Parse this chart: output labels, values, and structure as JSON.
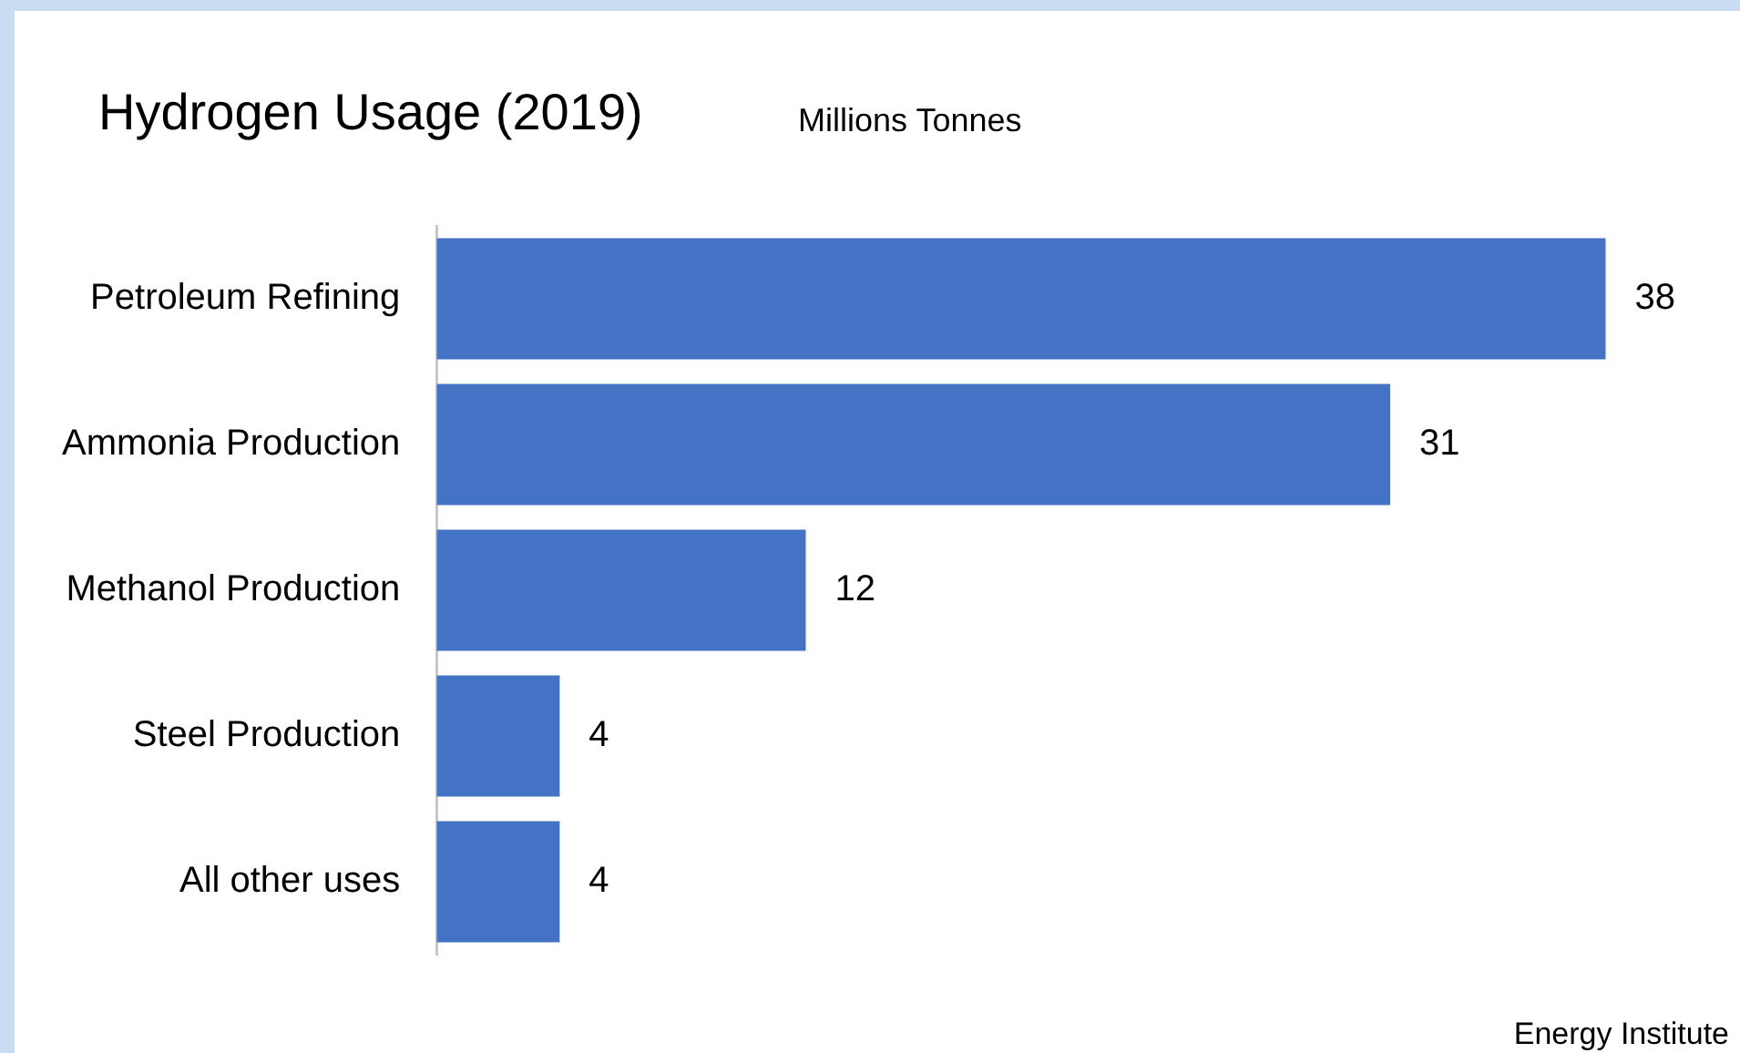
{
  "chart_data": {
    "type": "bar",
    "orientation": "horizontal",
    "title": "Hydrogen Usage (2019)",
    "subtitle": "Millions Tonnes",
    "categories": [
      "Petroleum Refining",
      "Ammonia Production",
      "Methanol Production",
      "Steel Production",
      "All other uses"
    ],
    "values": [
      38,
      31,
      12,
      4,
      4
    ],
    "color": "#4472c4",
    "data_labels": true,
    "tick_labels": "y",
    "annotations": [
      "Energy Institute"
    ]
  }
}
